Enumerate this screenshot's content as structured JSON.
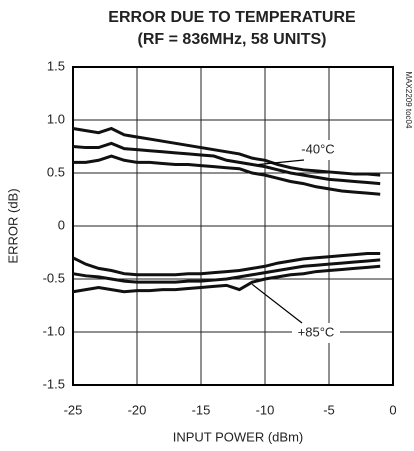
{
  "chart_data": {
    "type": "line",
    "title": [
      "ERROR DUE TO TEMPERATURE",
      "(RF = 836MHz, 58 UNITS)"
    ],
    "x_label": "INPUT POWER (dBm)",
    "y_label": "ERROR (dB)",
    "side_note": "MAX2209 toc04",
    "x": [
      -25,
      -24,
      -23,
      -22,
      -21,
      -20,
      -19,
      -18,
      -17,
      -16,
      -15,
      -14,
      -13,
      -12,
      -11,
      -10,
      -9,
      -8,
      -7,
      -6,
      -5,
      -4,
      -3,
      -2,
      -1
    ],
    "groups": [
      {
        "name": "-40°C",
        "color": "#111",
        "curves": [
          [
            0.92,
            0.9,
            0.88,
            0.92,
            0.86,
            0.84,
            0.82,
            0.8,
            0.78,
            0.76,
            0.74,
            0.72,
            0.7,
            0.68,
            0.64,
            0.62,
            0.58,
            0.55,
            0.53,
            0.52,
            0.51,
            0.5,
            0.49,
            0.49,
            0.48
          ],
          [
            0.75,
            0.74,
            0.74,
            0.78,
            0.73,
            0.72,
            0.71,
            0.7,
            0.69,
            0.68,
            0.67,
            0.66,
            0.62,
            0.6,
            0.58,
            0.56,
            0.53,
            0.5,
            0.48,
            0.46,
            0.44,
            0.43,
            0.42,
            0.41,
            0.4
          ],
          [
            0.6,
            0.6,
            0.62,
            0.66,
            0.62,
            0.6,
            0.6,
            0.59,
            0.58,
            0.58,
            0.57,
            0.56,
            0.55,
            0.54,
            0.5,
            0.48,
            0.45,
            0.42,
            0.4,
            0.37,
            0.35,
            0.33,
            0.32,
            0.31,
            0.3
          ]
        ]
      },
      {
        "name": "+85°C",
        "color": "#111",
        "curves": [
          [
            -0.3,
            -0.36,
            -0.4,
            -0.42,
            -0.45,
            -0.46,
            -0.46,
            -0.46,
            -0.46,
            -0.45,
            -0.45,
            -0.44,
            -0.43,
            -0.42,
            -0.4,
            -0.38,
            -0.35,
            -0.33,
            -0.31,
            -0.3,
            -0.29,
            -0.28,
            -0.27,
            -0.26,
            -0.26
          ],
          [
            -0.45,
            -0.47,
            -0.48,
            -0.5,
            -0.52,
            -0.53,
            -0.53,
            -0.53,
            -0.53,
            -0.52,
            -0.52,
            -0.51,
            -0.5,
            -0.48,
            -0.46,
            -0.44,
            -0.42,
            -0.4,
            -0.38,
            -0.37,
            -0.36,
            -0.35,
            -0.34,
            -0.33,
            -0.32
          ],
          [
            -0.62,
            -0.6,
            -0.58,
            -0.6,
            -0.62,
            -0.61,
            -0.61,
            -0.6,
            -0.6,
            -0.59,
            -0.58,
            -0.57,
            -0.56,
            -0.6,
            -0.53,
            -0.5,
            -0.48,
            -0.46,
            -0.45,
            -0.43,
            -0.42,
            -0.41,
            -0.4,
            -0.39,
            -0.38
          ]
        ]
      }
    ],
    "xlim": [
      -25,
      0
    ],
    "ylim": [
      -1.5,
      1.5
    ],
    "xticks": [
      -25,
      -20,
      -15,
      -10,
      -5,
      0
    ],
    "yticks": [
      -1.5,
      {
        "value": -1.0,
        "label": "-1.0"
      },
      -0.5,
      0,
      0.5,
      {
        "value": 1.0,
        "label": "1.0"
      },
      1.5
    ],
    "grid": true
  }
}
